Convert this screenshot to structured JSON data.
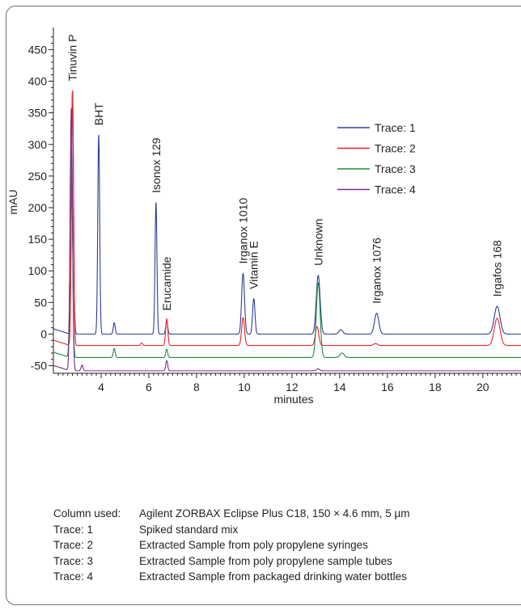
{
  "chart_data": {
    "type": "line",
    "xlabel": "minutes",
    "ylabel": "mAU",
    "xlim": [
      2.0,
      21.6
    ],
    "ylim": [
      -62,
      485
    ],
    "x_ticks": [
      4,
      6,
      8,
      10,
      12,
      14,
      16,
      18,
      20
    ],
    "y_ticks": [
      -50,
      0,
      50,
      100,
      150,
      200,
      250,
      300,
      350,
      400,
      450
    ],
    "legend_position": "top-right",
    "series": [
      {
        "name": "Trace: 1",
        "color": "#2e3f94",
        "baseline": 0,
        "peaks": [
          {
            "t": 2.8,
            "h": 385,
            "w": 0.045
          },
          {
            "t": 3.9,
            "h": 315,
            "w": 0.04
          },
          {
            "t": 4.55,
            "h": 18,
            "w": 0.04
          },
          {
            "t": 6.3,
            "h": 208,
            "w": 0.04
          },
          {
            "t": 6.75,
            "h": 22,
            "w": 0.04
          },
          {
            "t": 9.95,
            "h": 96,
            "w": 0.06
          },
          {
            "t": 10.4,
            "h": 56,
            "w": 0.05
          },
          {
            "t": 13.1,
            "h": 93,
            "w": 0.08
          },
          {
            "t": 14.05,
            "h": 7,
            "w": 0.08
          },
          {
            "t": 15.55,
            "h": 33,
            "w": 0.09
          },
          {
            "t": 20.6,
            "h": 44,
            "w": 0.12
          }
        ]
      },
      {
        "name": "Trace: 2",
        "color": "#e8262b",
        "baseline": -18,
        "peaks": [
          {
            "t": 2.8,
            "h": 403,
            "w": 0.045
          },
          {
            "t": 5.7,
            "h": 4,
            "w": 0.04
          },
          {
            "t": 6.75,
            "h": 42,
            "w": 0.045
          },
          {
            "t": 9.95,
            "h": 44,
            "w": 0.06
          },
          {
            "t": 13.05,
            "h": 30,
            "w": 0.07
          },
          {
            "t": 15.5,
            "h": 3,
            "w": 0.08
          },
          {
            "t": 20.6,
            "h": 43,
            "w": 0.12
          }
        ]
      },
      {
        "name": "Trace: 3",
        "color": "#1e8a3e",
        "baseline": -37,
        "peaks": [
          {
            "t": 2.75,
            "h": 330,
            "w": 0.05
          },
          {
            "t": 4.55,
            "h": 14,
            "w": 0.04
          },
          {
            "t": 6.75,
            "h": 13,
            "w": 0.04
          },
          {
            "t": 13.1,
            "h": 118,
            "w": 0.08
          },
          {
            "t": 14.1,
            "h": 7,
            "w": 0.09
          }
        ]
      },
      {
        "name": "Trace: 4",
        "color": "#7b2b8a",
        "baseline": -58,
        "peaks": [
          {
            "t": 2.75,
            "h": 415,
            "w": 0.05
          },
          {
            "t": 3.2,
            "h": 9,
            "w": 0.04
          },
          {
            "t": 6.75,
            "h": 16,
            "w": 0.04
          },
          {
            "t": 13.1,
            "h": 3,
            "w": 0.06
          }
        ]
      }
    ],
    "annotations": [
      {
        "text": "Tinuvin P",
        "x": 2.8,
        "y": 395
      },
      {
        "text": "BHT",
        "x": 3.9,
        "y": 325
      },
      {
        "text": "Isonox 129",
        "x": 6.3,
        "y": 218
      },
      {
        "text": "Erucamide",
        "x": 6.75,
        "y": 32
      },
      {
        "text": "Irganox 1010",
        "x": 9.95,
        "y": 106
      },
      {
        "text": "Vitamin E",
        "x": 10.4,
        "y": 66
      },
      {
        "text": "Unknown",
        "x": 13.1,
        "y": 103
      },
      {
        "text": "Irganox 1076",
        "x": 15.55,
        "y": 43
      },
      {
        "text": "Irgafos 168",
        "x": 20.6,
        "y": 54
      }
    ]
  },
  "info": {
    "column_label": "Column used:",
    "column_value": "Agilent ZORBAX Eclipse Plus C18, 150 × 4.6 mm, 5 µm",
    "traces": [
      {
        "label": "Trace: 1",
        "desc": "Spiked standard mix"
      },
      {
        "label": "Trace: 2",
        "desc": "Extracted Sample from poly propylene syringes"
      },
      {
        "label": "Trace: 3",
        "desc": "Extracted Sample from poly propylene sample tubes"
      },
      {
        "label": "Trace: 4",
        "desc": "Extracted Sample from packaged drinking water bottles"
      }
    ]
  }
}
